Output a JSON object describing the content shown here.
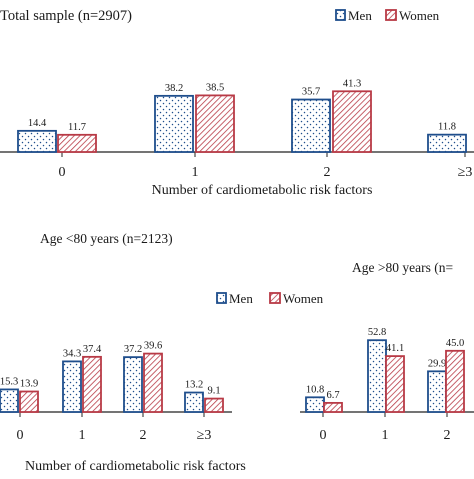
{
  "colors": {
    "men": "#1f4e8c",
    "women": "#b83a46",
    "axis": "#222222"
  },
  "legend": {
    "men": "Men",
    "women": "Women"
  },
  "shared_xlabel": "Number of cardiometabolic risk factors",
  "chart_data": [
    {
      "type": "bar",
      "title": "Total sample (n=2907)",
      "categories": [
        "0",
        "1",
        "2",
        "≥3"
      ],
      "series": [
        {
          "name": "Men",
          "values": [
            14.4,
            38.2,
            35.7,
            11.8
          ]
        },
        {
          "name": "Women",
          "values": [
            11.7,
            38.5,
            41.3,
            null
          ]
        }
      ],
      "xlabel": "Number of cardiometabolic risk factors",
      "ylim": [
        0,
        45
      ],
      "legend_position": "top-right"
    },
    {
      "type": "bar",
      "title": "Age <80 years (n=2123)",
      "categories": [
        "0",
        "1",
        "2",
        "≥3"
      ],
      "series": [
        {
          "name": "Men",
          "values": [
            15.3,
            34.3,
            37.2,
            13.2
          ]
        },
        {
          "name": "Women",
          "values": [
            13.9,
            37.4,
            39.6,
            9.1
          ]
        }
      ],
      "xlabel": "Number of cardiometabolic risk factors",
      "ylim": [
        0,
        45
      ],
      "legend_position": "top-right"
    },
    {
      "type": "bar",
      "title": "Age >80 years (n=",
      "categories": [
        "0",
        "1",
        "2"
      ],
      "series": [
        {
          "name": "Men",
          "values": [
            10.8,
            52.8,
            29.9
          ]
        },
        {
          "name": "Women",
          "values": [
            6.7,
            41.1,
            "45.0"
          ]
        }
      ],
      "ylim": [
        0,
        55
      ]
    }
  ]
}
